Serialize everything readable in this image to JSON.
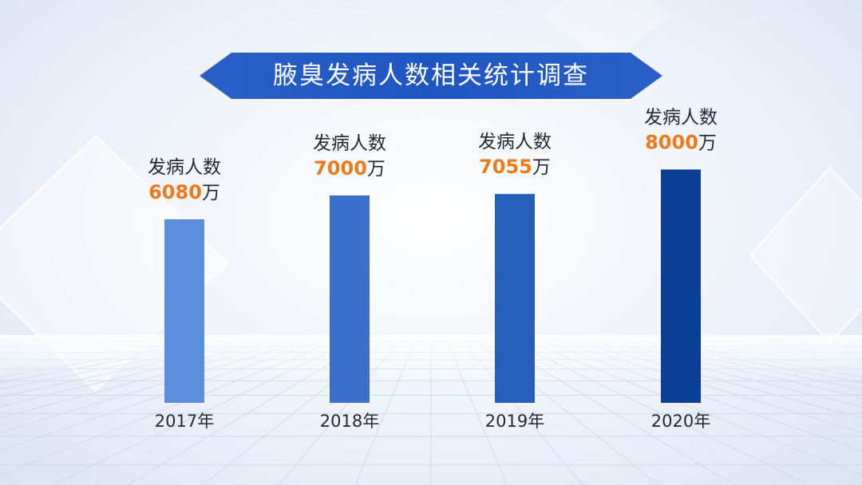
{
  "title": "腋臭发病人数相关统计调查",
  "chart_data": {
    "type": "bar",
    "categories": [
      "2017年",
      "2018年",
      "2019年",
      "2020年"
    ],
    "series": [
      {
        "values": [
          6080,
          7000,
          7055,
          8000
        ]
      }
    ],
    "value_prefix": "发病人数",
    "unit": "万",
    "colors": [
      "#5b8edb",
      "#3a70cc",
      "#275ebc",
      "#0b3f95"
    ],
    "value_color": "#ee7a1a"
  }
}
